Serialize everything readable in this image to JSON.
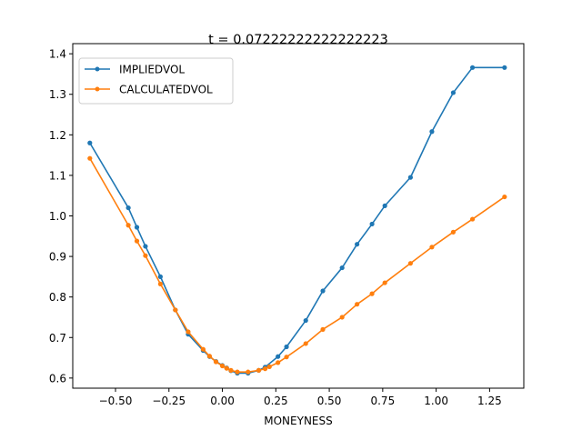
{
  "chart_data": {
    "type": "line",
    "title": "t = 0.07222222222222223",
    "xlabel": "MONEYNESS",
    "ylabel": "",
    "xlim": [
      -0.7,
      1.41
    ],
    "ylim": [
      0.575,
      1.425
    ],
    "xticks": [
      -0.5,
      -0.25,
      0.0,
      0.25,
      0.5,
      0.75,
      1.0,
      1.25
    ],
    "xtick_labels": [
      "−0.50",
      "−0.25",
      "0.00",
      "0.25",
      "0.50",
      "0.75",
      "1.00",
      "1.25"
    ],
    "yticks": [
      0.6,
      0.7,
      0.8,
      0.9,
      1.0,
      1.1,
      1.2,
      1.3,
      1.4
    ],
    "ytick_labels": [
      "0.6",
      "0.7",
      "0.8",
      "0.9",
      "1.0",
      "1.1",
      "1.2",
      "1.3",
      "1.4"
    ],
    "grid": false,
    "legend_position": "upper-left",
    "series": [
      {
        "name": "IMPLIEDVOL",
        "color": "#1f77b4",
        "x": [
          -0.62,
          -0.44,
          -0.4,
          -0.36,
          -0.29,
          -0.22,
          -0.16,
          -0.09,
          -0.06,
          -0.03,
          0.0,
          0.02,
          0.04,
          0.07,
          0.12,
          0.17,
          0.2,
          0.26,
          0.3,
          0.39,
          0.47,
          0.56,
          0.63,
          0.7,
          0.76,
          0.88,
          0.98,
          1.08,
          1.17,
          1.32
        ],
        "y": [
          1.18,
          1.02,
          0.972,
          0.925,
          0.85,
          0.768,
          0.708,
          0.668,
          0.653,
          0.641,
          0.631,
          0.625,
          0.618,
          0.612,
          0.612,
          0.619,
          0.627,
          0.653,
          0.677,
          0.742,
          0.815,
          0.872,
          0.93,
          0.98,
          1.025,
          1.095,
          1.208,
          1.304,
          1.366,
          1.366
        ]
      },
      {
        "name": "CALCULATEDVOL",
        "color": "#ff7f0e",
        "x": [
          -0.62,
          -0.44,
          -0.4,
          -0.36,
          -0.29,
          -0.22,
          -0.16,
          -0.09,
          -0.06,
          -0.03,
          0.0,
          0.02,
          0.04,
          0.07,
          0.12,
          0.17,
          0.2,
          0.22,
          0.26,
          0.3,
          0.39,
          0.47,
          0.56,
          0.63,
          0.7,
          0.76,
          0.88,
          0.98,
          1.08,
          1.17,
          1.32
        ],
        "y": [
          1.142,
          0.977,
          0.938,
          0.902,
          0.832,
          0.768,
          0.714,
          0.671,
          0.654,
          0.64,
          0.63,
          0.624,
          0.619,
          0.615,
          0.615,
          0.619,
          0.623,
          0.628,
          0.638,
          0.652,
          0.685,
          0.72,
          0.75,
          0.782,
          0.808,
          0.835,
          0.883,
          0.923,
          0.96,
          0.992,
          1.047
        ]
      }
    ]
  }
}
